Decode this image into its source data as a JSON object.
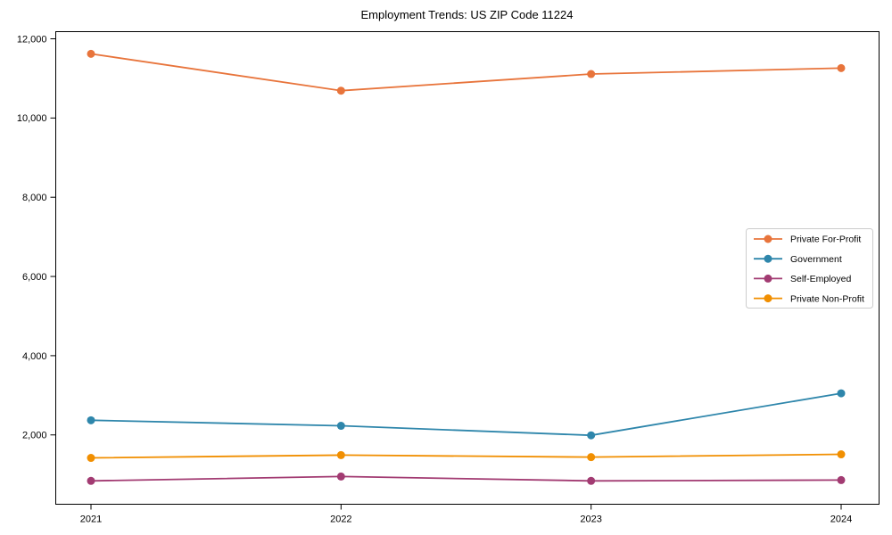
{
  "chart_data": {
    "type": "line",
    "title": "Employment Trends: US ZIP Code 11224",
    "xlabel": "",
    "ylabel": "",
    "x_labels": [
      "2021",
      "2022",
      "2023",
      "2024"
    ],
    "series": [
      {
        "name": "Private For-Profit",
        "color": "#E8743B",
        "values": [
          11620,
          10690,
          11110,
          11260
        ]
      },
      {
        "name": "Government",
        "color": "#2E86AB",
        "values": [
          2370,
          2230,
          1990,
          3050
        ]
      },
      {
        "name": "Self-Employed",
        "color": "#A23B72",
        "values": [
          840,
          950,
          840,
          860
        ]
      },
      {
        "name": "Private Non-Profit",
        "color": "#F18F01",
        "values": [
          1420,
          1490,
          1440,
          1510
        ]
      }
    ],
    "yticks": [
      2000,
      4000,
      6000,
      8000,
      10000,
      12000
    ],
    "ytick_labels": [
      "2,000",
      "4,000",
      "6,000",
      "8,000",
      "10,000",
      "12,000"
    ],
    "ylim": [
      250,
      12180
    ],
    "grid": false,
    "marker": "circle",
    "legend": {
      "position": "center-right",
      "background": "#ffffff",
      "border_color": "#cccccc"
    },
    "axis_color": "#000000",
    "text_color": "#000000"
  }
}
